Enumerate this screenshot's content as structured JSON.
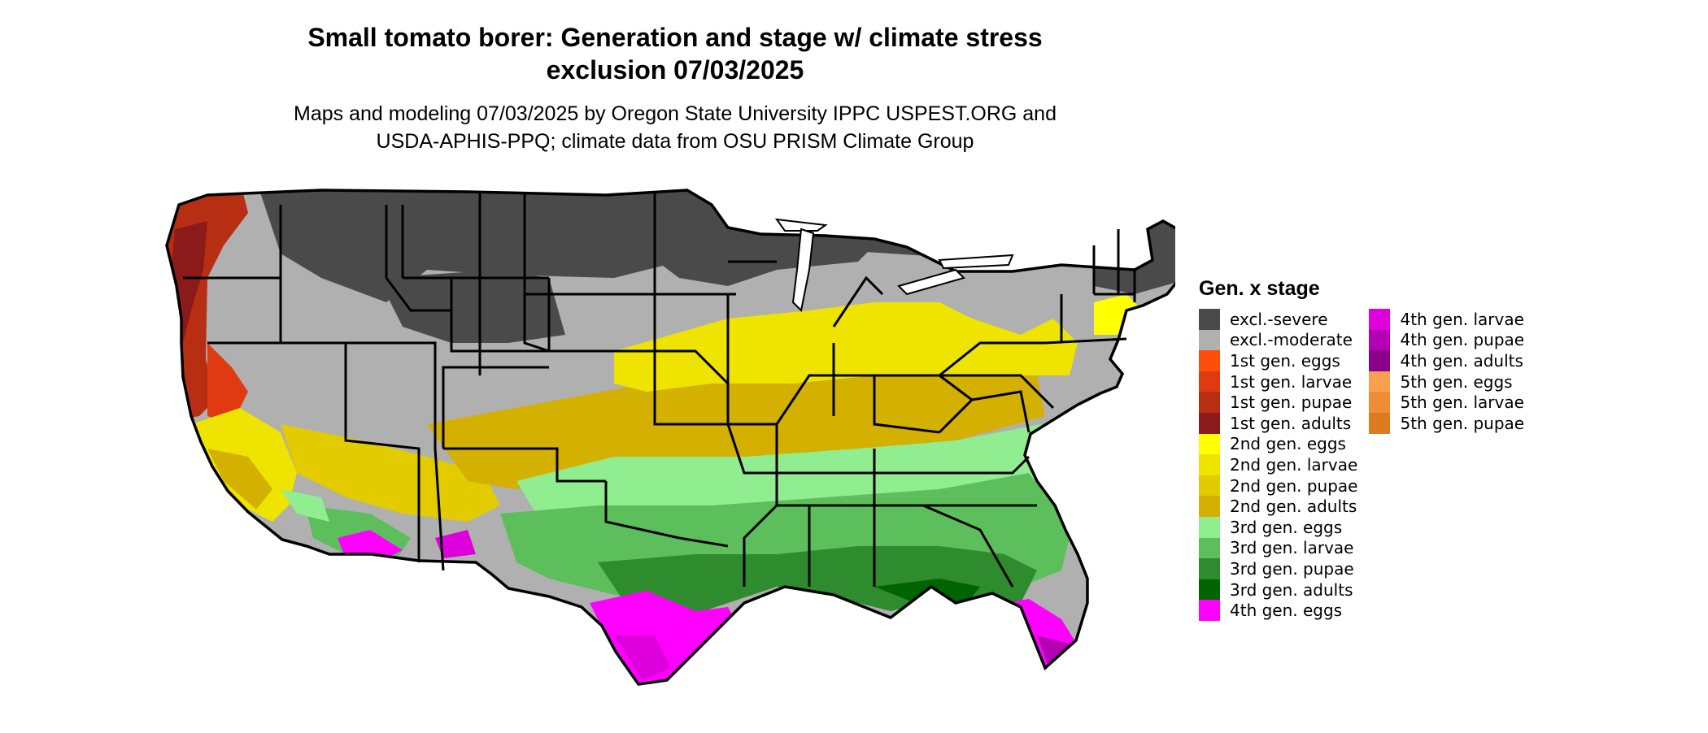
{
  "title": {
    "line1": "Small tomato borer: Generation and stage w/ climate stress",
    "line2": "exclusion 07/03/2025"
  },
  "subtitle": {
    "line1": "Maps and modeling 07/03/2025 by Oregon State University IPPC USPEST.ORG and",
    "line2": "USDA-APHIS-PPQ; climate data from OSU PRISM Climate Group"
  },
  "legend": {
    "title": "Gen. x stage",
    "column1": [
      {
        "label": "excl.-severe",
        "color": "#4a4a4a"
      },
      {
        "label": "excl.-moderate",
        "color": "#b0b0b0"
      },
      {
        "label": "1st gen. eggs",
        "color": "#ff4e0a"
      },
      {
        "label": "1st gen. larvae",
        "color": "#e03a10"
      },
      {
        "label": "1st gen. pupae",
        "color": "#b82e12"
      },
      {
        "label": "1st gen. adults",
        "color": "#8b1a1a"
      },
      {
        "label": "2nd gen. eggs",
        "color": "#ffff00"
      },
      {
        "label": "2nd gen. larvae",
        "color": "#eee400"
      },
      {
        "label": "2nd gen. pupae",
        "color": "#e2cc00"
      },
      {
        "label": "2nd gen. adults",
        "color": "#d4b000"
      },
      {
        "label": "3rd gen. eggs",
        "color": "#90ee90"
      },
      {
        "label": "3rd gen. larvae",
        "color": "#5cbf5c"
      },
      {
        "label": "3rd gen. pupae",
        "color": "#2e8b2e"
      },
      {
        "label": "3rd gen. adults",
        "color": "#006400"
      },
      {
        "label": "4th gen. eggs",
        "color": "#ff00ff"
      }
    ],
    "column2": [
      {
        "label": "4th gen. larvae",
        "color": "#dd00dd"
      },
      {
        "label": "4th gen. pupae",
        "color": "#b400b4"
      },
      {
        "label": "4th gen. adults",
        "color": "#8b008b"
      },
      {
        "label": "5th gen. eggs",
        "color": "#f8a050"
      },
      {
        "label": "5th gen. larvae",
        "color": "#ee8c38"
      },
      {
        "label": "5th gen. pupae",
        "color": "#de7a20"
      }
    ]
  }
}
